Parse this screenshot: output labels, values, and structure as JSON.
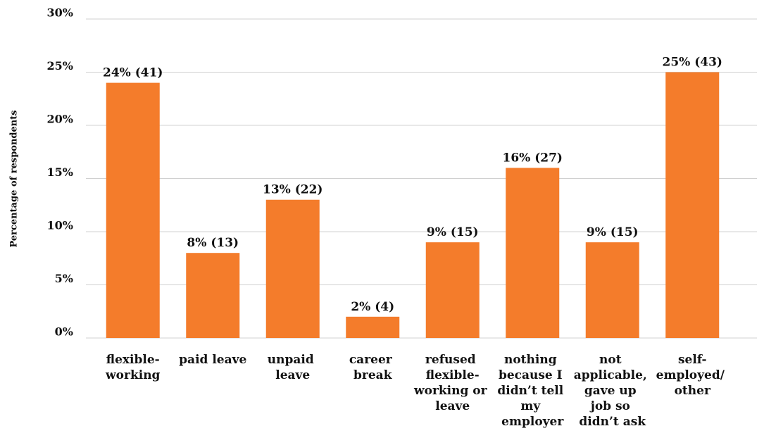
{
  "chart_data": {
    "type": "bar",
    "y_label": "Percentage of respondents",
    "categories": [
      "flexible-working",
      "paid leave",
      "unpaid leave",
      "career break",
      "refused flexible-working or leave",
      "nothing because I didn’t tell my employer",
      "not applicable, gave up job so didn’t ask",
      "self-employed/ other"
    ],
    "values": [
      24,
      8,
      13,
      2,
      9,
      16,
      9,
      25
    ],
    "value_labels": [
      "24% (41)",
      "8% (13)",
      "13% (22)",
      "2% (4)",
      "9% (15)",
      "16% (27)",
      "9% (15)",
      "25% (43)"
    ],
    "color": "#f47c2b",
    "ylim": [
      0,
      30
    ],
    "yticks": [
      {
        "value": 0,
        "label": "0%"
      },
      {
        "value": 5,
        "label": "5%"
      },
      {
        "value": 10,
        "label": "10%"
      },
      {
        "value": 15,
        "label": "15%"
      },
      {
        "value": 20,
        "label": "20%"
      },
      {
        "value": 25,
        "label": "25%"
      },
      {
        "value": 30,
        "label": "30%"
      }
    ],
    "grid": true
  }
}
